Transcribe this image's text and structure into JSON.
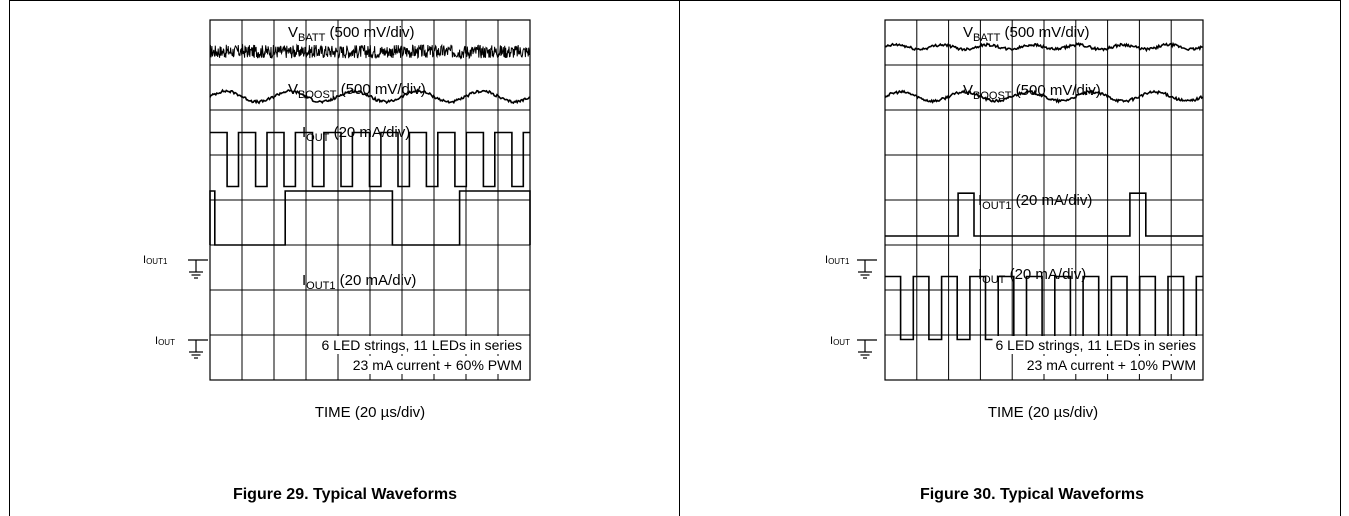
{
  "chart_data": [
    {
      "type": "line",
      "title": "Figure 29. Typical Waveforms",
      "xlabel": "TIME (20 µs/div)",
      "grid": true,
      "divisions": {
        "x": 10,
        "y": 8
      },
      "annotation": [
        "6 LED strings, 11 LEDs in series",
        "23 mA current + 60% PWM"
      ],
      "ground_markers": [
        {
          "name": "IOUT1",
          "sub": "OUT1"
        },
        {
          "name": "IOUT",
          "sub": "OUT"
        }
      ],
      "series": [
        {
          "name": "VBATT (500 mV/div)",
          "main": "V",
          "sub": "BATT",
          "rest": " (500 mV/div)",
          "level_div": 7.3,
          "kind": "noise",
          "amplitude_div": 0.15
        },
        {
          "name": "VBOOST (500 mV/div)",
          "main": "V",
          "sub": "BOOST",
          "rest": " (500 mV/div)",
          "level_div": 6.3,
          "kind": "ripple",
          "ripple_periods": 5,
          "amplitude_div": 0.12
        },
        {
          "name": "IOUT (20 mA/div)",
          "main": "I",
          "sub": "OUT",
          "rest": " (20 mA/div)",
          "base_div": 4.3,
          "high_div": 5.5,
          "kind": "pwm",
          "period_div": 0.89,
          "duty": 0.6
        },
        {
          "name": "IOUT1 (20 mA/div)",
          "main": "I",
          "sub": "OUT1",
          "rest": " (20 mA/div)",
          "base_div": 3.0,
          "high_div": 4.2,
          "kind": "steps",
          "high_intervals_div": [
            [
              0.0,
              0.15
            ],
            [
              2.35,
              5.7
            ],
            [
              7.8,
              10.0
            ]
          ]
        }
      ]
    },
    {
      "type": "line",
      "title": "Figure 30. Typical Waveforms",
      "xlabel": "TIME (20 µs/div)",
      "grid": true,
      "divisions": {
        "x": 10,
        "y": 8
      },
      "annotation": [
        "6 LED strings, 11 LEDs in series",
        "23 mA current + 10% PWM"
      ],
      "ground_markers": [
        {
          "name": "IOUT1",
          "sub": "OUT1"
        },
        {
          "name": "IOUT",
          "sub": "OUT"
        }
      ],
      "series": [
        {
          "name": "VBATT (500 mV/div)",
          "main": "V",
          "sub": "BATT",
          "rest": " (500 mV/div)",
          "level_div": 7.4,
          "kind": "ripple",
          "ripple_periods": 7,
          "amplitude_div": 0.05
        },
        {
          "name": "VBOOST (500 mV/div)",
          "main": "V",
          "sub": "BOOST",
          "rest": " (500 mV/div)",
          "level_div": 6.3,
          "kind": "ripple",
          "ripple_periods": 5,
          "amplitude_div": 0.1
        },
        {
          "name": "IOUT1 (20 mA/div)",
          "main": "I",
          "sub": "OUT1",
          "rest": " (20 mA/div)",
          "base_div": 3.2,
          "high_div": 4.15,
          "kind": "steps",
          "high_intervals_div": [
            [
              2.3,
              2.8
            ],
            [
              7.7,
              8.2
            ]
          ]
        },
        {
          "name": "IOUT (20 mA/div)",
          "main": "I",
          "sub": "OUT",
          "rest": " (20 mA/div)",
          "base_div": 0.9,
          "high_div": 2.3,
          "kind": "pwm",
          "period_div": 0.89,
          "duty": 0.55
        }
      ]
    }
  ],
  "colors": {
    "trace": "#000000",
    "grid": "#000000"
  }
}
